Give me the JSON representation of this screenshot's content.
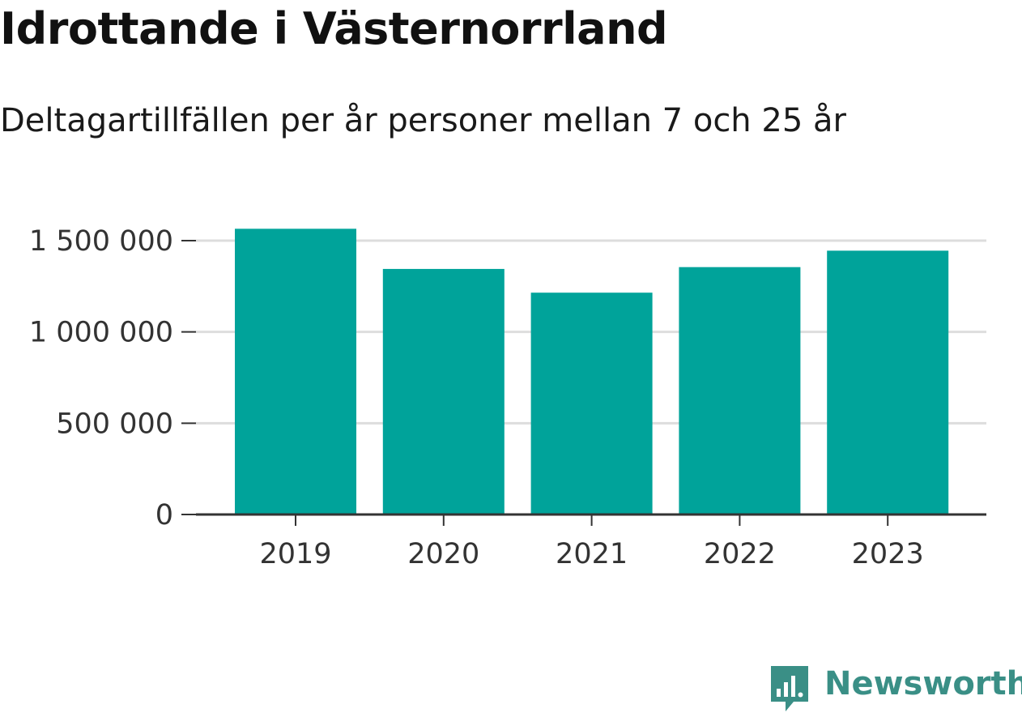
{
  "title": "Idrottande i Västernorrland",
  "subtitle": "Deltagartillfällen per år personer mellan 7 och 25 år",
  "brand": {
    "name": "Newsworthy",
    "icon": "newsworthy-logo-icon",
    "color": "#3a8f86"
  },
  "colors": {
    "bar": "#00a39a",
    "grid": "#dddddd",
    "axis": "#333333"
  },
  "chart_data": {
    "type": "bar",
    "categories": [
      "2019",
      "2020",
      "2021",
      "2022",
      "2023"
    ],
    "values": [
      1565000,
      1345000,
      1215000,
      1355000,
      1445000
    ],
    "ylim": [
      0,
      1500000
    ],
    "yticks": [
      0,
      500000,
      1000000,
      1500000
    ],
    "ytick_labels": [
      "0",
      "500 000",
      "1 000 000",
      "1 500 000"
    ],
    "grid": true,
    "legend": "none"
  }
}
